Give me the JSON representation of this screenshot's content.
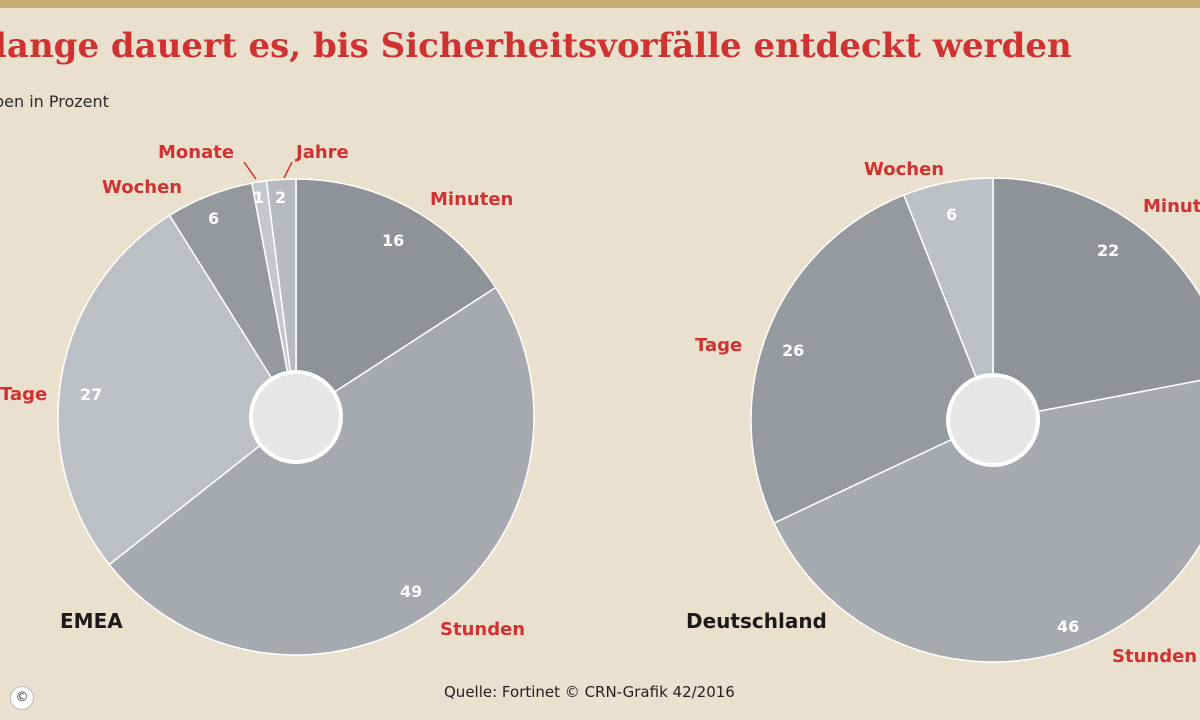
{
  "title": "lange dauert es, bis Sicherheitsvorfälle entdeckt werden",
  "subtitle": "ben in Prozent",
  "source": "Quelle: Fortinet © CRN-Grafik 42/2016",
  "copyright_symbol": "©",
  "colors": {
    "background": "#e9e1cd",
    "title": "#d03232",
    "Minuten": "#8f9297",
    "Stunden": "#a6a9ae",
    "Tage_EMEA": "#bcbfc3",
    "Tage_Deutschland": "#96999e",
    "Wochen_EMEA": "#95989c",
    "Wochen_Deutschland": "#bdc0c4",
    "Monate": "#c4c7cb",
    "Jahre": "#b6b9bd",
    "center": "#e6e6e6"
  },
  "chart_data": [
    {
      "type": "pie",
      "name": "EMEA",
      "categories": [
        "Minuten",
        "Stunden",
        "Tage",
        "Wochen",
        "Monate",
        "Jahre"
      ],
      "values": [
        16,
        49,
        27,
        6,
        1,
        2
      ],
      "value_labels": [
        "16",
        "49",
        "27",
        "6",
        "1",
        "2"
      ]
    },
    {
      "type": "pie",
      "name": "Deutschland",
      "categories": [
        "Minuten",
        "Stunden",
        "Tage",
        "Wochen"
      ],
      "values": [
        22,
        46,
        26,
        6
      ],
      "value_labels": [
        "22",
        "46",
        "26",
        "6"
      ]
    }
  ]
}
